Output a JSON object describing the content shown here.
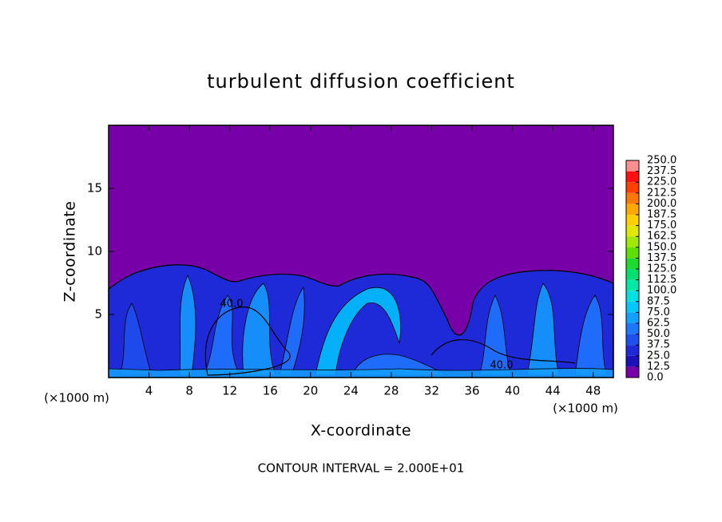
{
  "chart_data": {
    "type": "contour",
    "title": "turbulent diffusion coefficient",
    "xlabel": "X-coordinate",
    "ylabel": "Z-coordinate",
    "xunit": "(×1000 m)",
    "yunit": "(×1000 m)",
    "footnote": "CONTOUR INTERVAL = 2.000E+01",
    "xlim": [
      0,
      50
    ],
    "xticks": [
      4,
      8,
      12,
      16,
      20,
      24,
      28,
      32,
      36,
      40,
      44,
      48
    ],
    "ylim": [
      0,
      20
    ],
    "yticks": [
      5,
      10,
      15
    ],
    "levels": [
      {
        "value": 0,
        "label": "0.0"
      },
      {
        "value": 12.5,
        "label": "12.5"
      },
      {
        "value": 25,
        "label": "25.0"
      },
      {
        "value": 37.5,
        "label": "37.5"
      },
      {
        "value": 50,
        "label": "50.0"
      },
      {
        "value": 62.5,
        "label": "62.5"
      },
      {
        "value": 75,
        "label": "75.0"
      },
      {
        "value": 87.5,
        "label": "87.5"
      },
      {
        "value": 100,
        "label": "100.0"
      },
      {
        "value": 112.5,
        "label": "112.5"
      },
      {
        "value": 125,
        "label": "125.0"
      },
      {
        "value": 137.5,
        "label": "137.5"
      },
      {
        "value": 150,
        "label": "150.0"
      },
      {
        "value": 162.5,
        "label": "162.5"
      },
      {
        "value": 175,
        "label": "175.0"
      },
      {
        "value": 187.5,
        "label": "187.5"
      },
      {
        "value": 200,
        "label": "200.0"
      },
      {
        "value": 212.5,
        "label": "212.5"
      },
      {
        "value": 225,
        "label": "225.0"
      },
      {
        "value": 237.5,
        "label": "237.5"
      },
      {
        "value": 250,
        "label": "250.0"
      }
    ],
    "level_colors": [
      "#7800a8",
      "#1c10b8",
      "#1e2ad8",
      "#1e50f0",
      "#1e78ff",
      "#14a0ff",
      "#00c8ff",
      "#00e0e0",
      "#00e8a8",
      "#00e070",
      "#20d830",
      "#60e000",
      "#a0e800",
      "#e0e800",
      "#ffd000",
      "#ffa800",
      "#ff7800",
      "#ff4000",
      "#ff1010",
      "#ff9090"
    ],
    "annotations": [
      "40.0",
      "40.0"
    ]
  }
}
